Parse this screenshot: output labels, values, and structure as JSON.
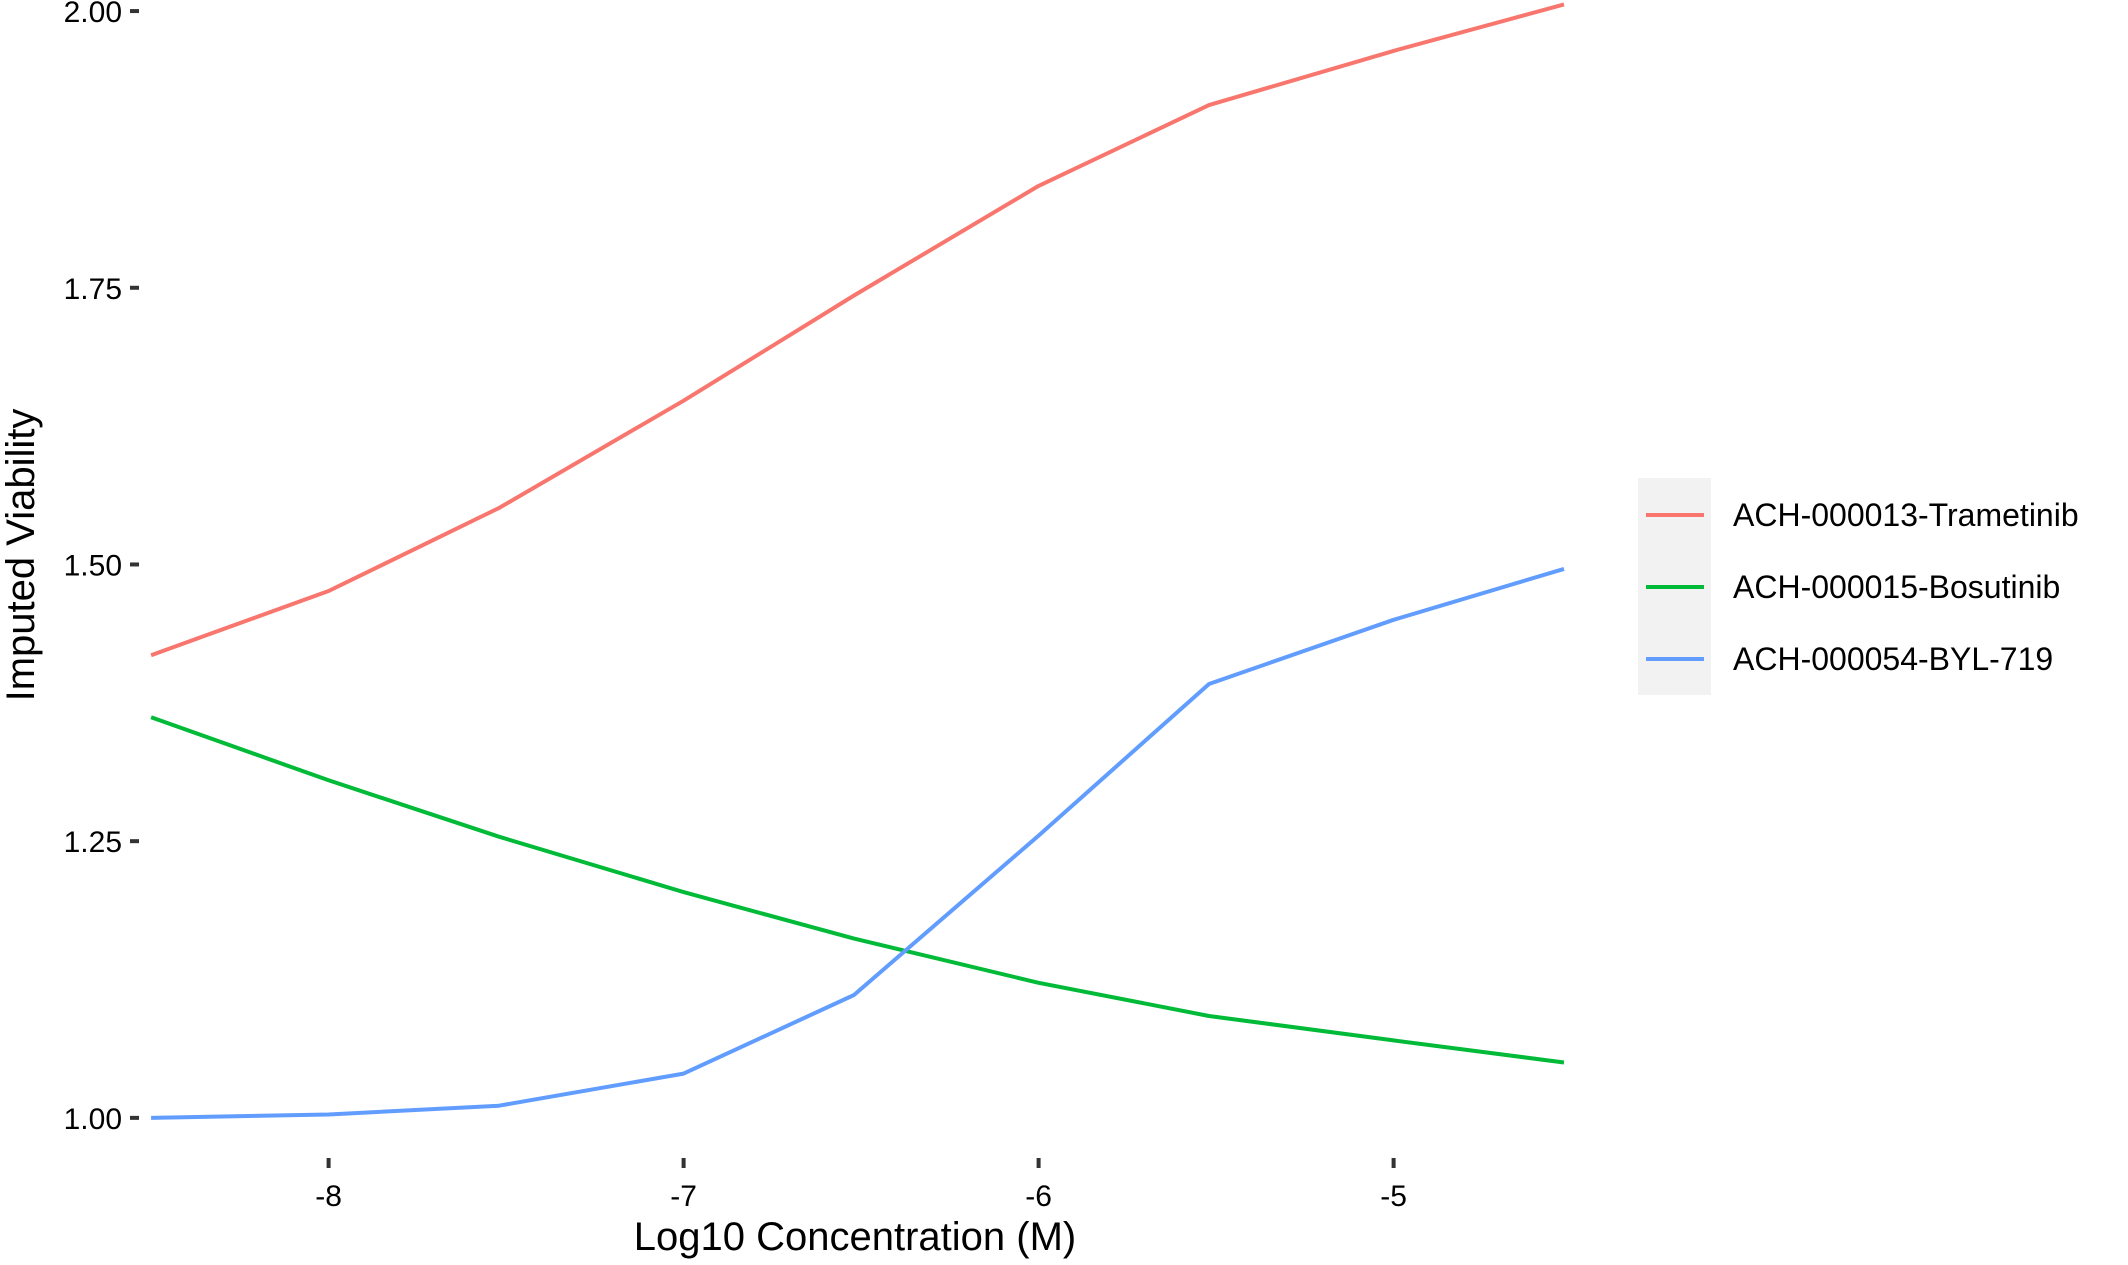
{
  "chart_data": {
    "type": "line",
    "title": "",
    "xlabel": "Log10 Concentration (M)",
    "ylabel": "Imputed Viability",
    "xlim": [
      -8.52,
      -4.52
    ],
    "ylim": [
      0.98,
      2.01
    ],
    "x_ticks": [
      -8,
      -7,
      -6,
      -5
    ],
    "x_tick_labels": [
      "-8",
      "-7",
      "-6",
      "-5"
    ],
    "y_ticks": [
      1.0,
      1.25,
      1.5,
      1.75,
      2.0
    ],
    "y_tick_labels": [
      "1.00",
      "1.25",
      "1.50",
      "1.75",
      "2.00"
    ],
    "grid": false,
    "legend_position": "right",
    "series": [
      {
        "name": "ACH-000013-Trametinib",
        "color": "#F8766D",
        "x": [
          -8.5,
          -8.0,
          -7.52,
          -7.0,
          -6.52,
          -6.0,
          -5.52,
          -5.0,
          -4.52
        ],
        "y": [
          1.418,
          1.476,
          1.551,
          1.648,
          1.743,
          1.842,
          1.915,
          1.964,
          2.006
        ]
      },
      {
        "name": "ACH-000015-Bosutinib",
        "color": "#00BA38",
        "x": [
          -8.5,
          -8.0,
          -7.52,
          -7.0,
          -6.52,
          -6.0,
          -5.52,
          -5.0,
          -4.52
        ],
        "y": [
          1.362,
          1.305,
          1.254,
          1.204,
          1.162,
          1.122,
          1.092,
          1.07,
          1.05
        ]
      },
      {
        "name": "ACH-000054-BYL-719",
        "color": "#619CFF",
        "x": [
          -8.5,
          -8.0,
          -7.52,
          -7.0,
          -6.52,
          -6.0,
          -5.52,
          -5.0,
          -4.52
        ],
        "y": [
          1.0,
          1.003,
          1.011,
          1.04,
          1.111,
          1.255,
          1.392,
          1.45,
          1.496
        ]
      }
    ]
  }
}
